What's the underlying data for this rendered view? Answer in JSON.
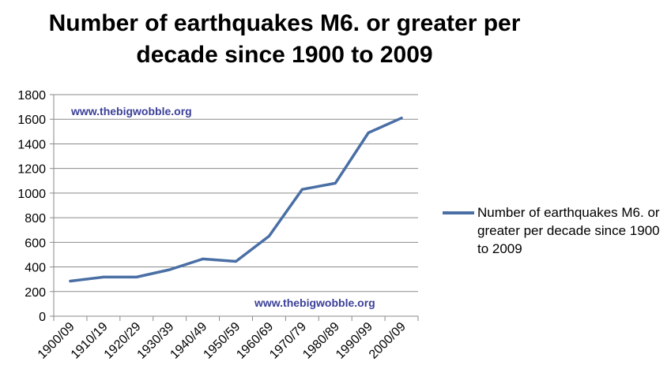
{
  "chart_data": {
    "type": "line",
    "title_lines": [
      "Number of earthquakes M6. or greater per",
      "decade since 1900 to 2009"
    ],
    "xlabel": "",
    "ylabel": "",
    "categories": [
      "1900/09",
      "1910/19",
      "1920/29",
      "1930/39",
      "1940/49",
      "1950/59",
      "1960/69",
      "1970/79",
      "1980/89",
      "1990/99",
      "2000/09"
    ],
    "series": [
      {
        "name": "Number of earthquakes M6. or greater per decade since 1900 to 2009",
        "color": "#4a6fa5",
        "values": [
          285,
          318,
          318,
          378,
          465,
          445,
          650,
          1030,
          1080,
          1490,
          1610
        ]
      }
    ],
    "ylim": [
      0,
      1800
    ],
    "yticks": [
      0,
      200,
      400,
      600,
      800,
      1000,
      1200,
      1400,
      1600,
      1800
    ],
    "grid": true,
    "legend_position": "right"
  },
  "watermarks": [
    "www.thebigwobble.org",
    "www.thebigwobble.org"
  ]
}
